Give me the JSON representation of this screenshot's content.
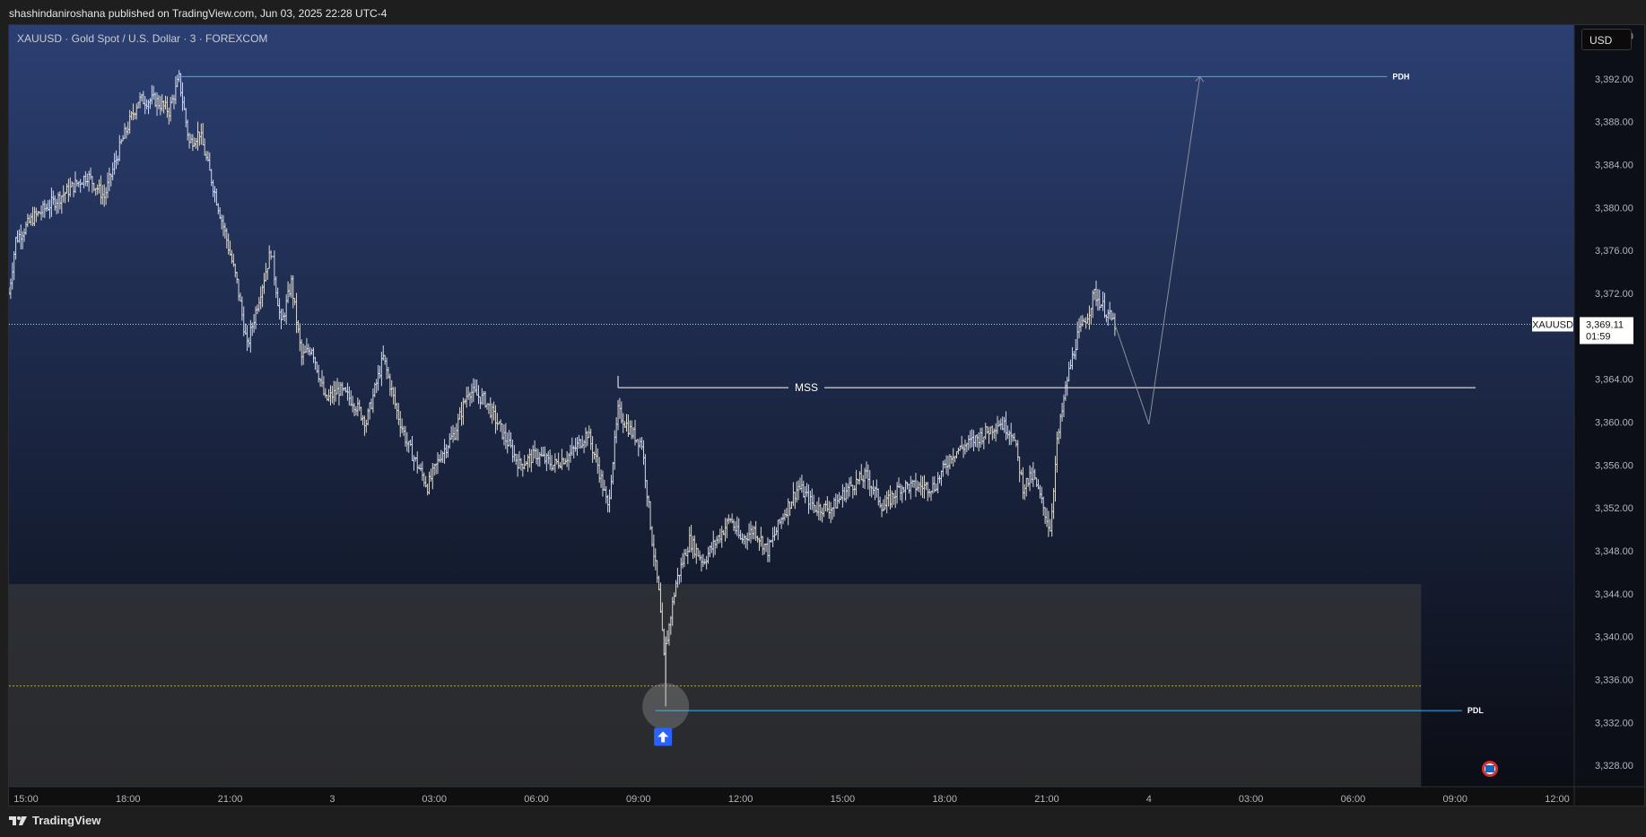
{
  "header": {
    "published": "shashindaniroshana published on TradingView.com, Jun 03, 2025 22:28 UTC-4"
  },
  "chart_header": {
    "symbol": "XAUUSD · Gold Spot / U.S. Dollar · 3 · FOREXCOM",
    "currency": "USD"
  },
  "footer": {
    "brand": "TradingView"
  },
  "colors": {
    "bg_top": "#2b3f72",
    "bg_bottom": "#0a0c12",
    "candle": "#d9d9d9",
    "level_line": "#29b6f6",
    "mss_line": "#ffffff",
    "zone": "#3a3a3a",
    "midline": "#b0a850",
    "arrow_badge": "#2962ff"
  },
  "chart_data": {
    "type": "line",
    "title": "XAUUSD · Gold Spot / U.S. Dollar · 3 · FOREXCOM",
    "ylim": [
      3326,
      3397
    ],
    "y_ticks": [
      3396,
      3392,
      3388,
      3384,
      3380,
      3376,
      3372,
      3368,
      3364,
      3360,
      3356,
      3352,
      3348,
      3344,
      3340,
      3336,
      3332,
      3328
    ],
    "y_tick_labels": [
      "3,396.00",
      "3,392.00",
      "3,388.00",
      "3,384.00",
      "3,380.00",
      "3,376.00",
      "3,372.00",
      "",
      "3,364.00",
      "3,360.00",
      "3,356.00",
      "3,352.00",
      "3,348.00",
      "3,344.00",
      "3,340.00",
      "3,336.00",
      "3,332.00",
      "3,328.00"
    ],
    "x_range": [
      14.5,
      60.5
    ],
    "x_ticks": [
      15,
      18,
      21,
      24,
      27,
      30,
      33,
      36,
      39,
      42,
      45,
      48,
      51,
      54,
      57,
      60
    ],
    "x_tick_labels": [
      "15:00",
      "18:00",
      "21:00",
      "3",
      "03:00",
      "06:00",
      "09:00",
      "12:00",
      "15:00",
      "18:00",
      "21:00",
      "4",
      "03:00",
      "06:00",
      "09:00",
      "12:00"
    ],
    "price_path": [
      [
        14.5,
        3372.0
      ],
      [
        14.7,
        3377.0
      ],
      [
        15.2,
        3379.0
      ],
      [
        16.0,
        3381.0
      ],
      [
        16.8,
        3383.0
      ],
      [
        17.3,
        3381.0
      ],
      [
        17.8,
        3386.0
      ],
      [
        18.3,
        3390.0
      ],
      [
        18.8,
        3390.0
      ],
      [
        19.2,
        3389.0
      ],
      [
        19.5,
        3392.0
      ],
      [
        19.8,
        3386.0
      ],
      [
        20.1,
        3387.0
      ],
      [
        20.5,
        3382.0
      ],
      [
        20.9,
        3377.0
      ],
      [
        21.2,
        3373.0
      ],
      [
        21.5,
        3367.0
      ],
      [
        21.8,
        3371.0
      ],
      [
        22.2,
        3376.0
      ],
      [
        22.5,
        3369.0
      ],
      [
        22.8,
        3373.0
      ],
      [
        23.1,
        3366.0
      ],
      [
        23.4,
        3367.0
      ],
      [
        23.8,
        3362.0
      ],
      [
        24.2,
        3363.0
      ],
      [
        24.6,
        3362.0
      ],
      [
        25.0,
        3360.0
      ],
      [
        25.5,
        3366.0
      ],
      [
        25.9,
        3361.0
      ],
      [
        26.2,
        3358.0
      ],
      [
        26.5,
        3356.0
      ],
      [
        26.8,
        3354.0
      ],
      [
        27.2,
        3357.0
      ],
      [
        27.6,
        3359.0
      ],
      [
        28.0,
        3363.0
      ],
      [
        28.5,
        3362.0
      ],
      [
        29.0,
        3359.0
      ],
      [
        29.5,
        3356.0
      ],
      [
        30.0,
        3357.0
      ],
      [
        30.5,
        3356.0
      ],
      [
        31.0,
        3357.0
      ],
      [
        31.5,
        3359.0
      ],
      [
        31.8,
        3356.0
      ],
      [
        32.1,
        3352.0
      ],
      [
        32.4,
        3361.0
      ],
      [
        32.8,
        3359.0
      ],
      [
        33.1,
        3358.0
      ],
      [
        33.4,
        3349.0
      ],
      [
        33.6,
        3344.0
      ],
      [
        33.75,
        3338.0
      ],
      [
        33.9,
        3341.0
      ],
      [
        34.1,
        3345.0
      ],
      [
        34.5,
        3349.0
      ],
      [
        34.9,
        3347.0
      ],
      [
        35.3,
        3349.0
      ],
      [
        35.7,
        3351.0
      ],
      [
        36.0,
        3349.0
      ],
      [
        36.4,
        3350.0
      ],
      [
        36.8,
        3348.0
      ],
      [
        37.2,
        3351.0
      ],
      [
        37.7,
        3354.0
      ],
      [
        38.2,
        3352.0
      ],
      [
        38.7,
        3352.0
      ],
      [
        39.2,
        3354.0
      ],
      [
        39.7,
        3355.0
      ],
      [
        40.2,
        3352.0
      ],
      [
        40.7,
        3354.0
      ],
      [
        41.2,
        3354.0
      ],
      [
        41.7,
        3354.0
      ],
      [
        42.2,
        3357.0
      ],
      [
        42.7,
        3358.0
      ],
      [
        43.2,
        3359.0
      ],
      [
        43.6,
        3360.0
      ],
      [
        44.0,
        3359.0
      ],
      [
        44.3,
        3354.0
      ],
      [
        44.6,
        3355.0
      ],
      [
        44.9,
        3352.0
      ],
      [
        45.1,
        3350.0
      ],
      [
        45.3,
        3358.0
      ],
      [
        45.6,
        3364.0
      ],
      [
        45.9,
        3368.0
      ],
      [
        46.2,
        3370.0
      ],
      [
        46.4,
        3372.0
      ],
      [
        46.6,
        3371.0
      ],
      [
        46.8,
        3370.0
      ],
      [
        47.0,
        3369.11
      ]
    ],
    "last_price": {
      "symbol": "XAUUSD",
      "price": 3369.11,
      "price_label": "3,369.11",
      "countdown": "01:59"
    },
    "annotations": [
      {
        "label": "PDH",
        "price": 3392.2,
        "x_start": 19.5,
        "x_end": 55.0
      },
      {
        "label": "MSS",
        "price": 3363.2,
        "x_start": 32.4,
        "x_end": 57.6
      },
      {
        "label": "PDL",
        "price": 3333.1,
        "x_start": 33.5,
        "x_end": 57.2
      }
    ],
    "projection": [
      [
        47.0,
        3369.11
      ],
      [
        48.0,
        3359.8
      ],
      [
        49.5,
        3392.2
      ]
    ],
    "zone": {
      "top": 3344.9,
      "bottom": 3326,
      "mid": 3335.4,
      "x_start": 14.5,
      "x_end": 56.0
    },
    "lows": [
      {
        "x": 33.8,
        "price": 3333.5
      }
    ],
    "grid": false
  }
}
